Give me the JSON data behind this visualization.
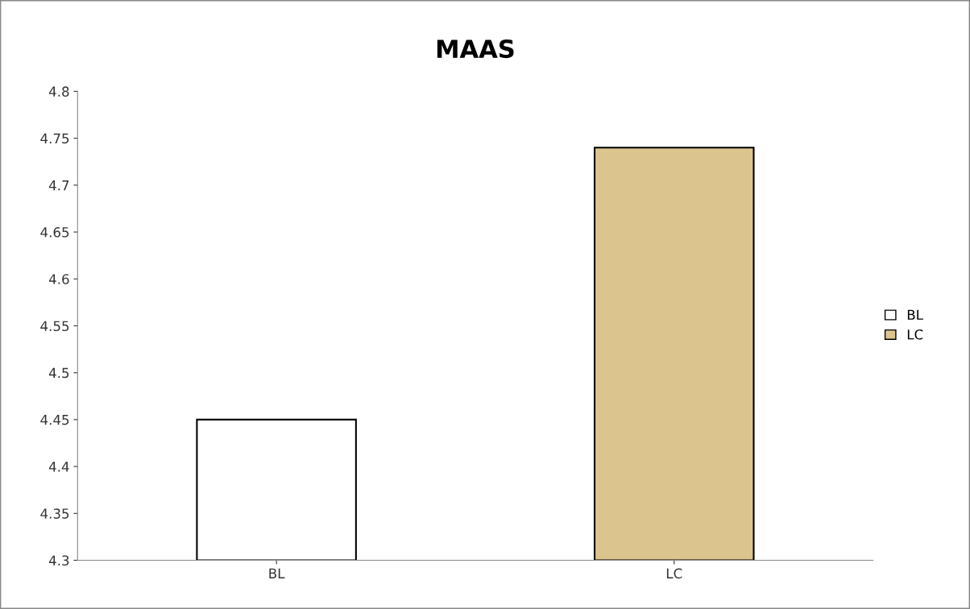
{
  "chart_data": {
    "type": "bar",
    "title": "MAAS",
    "categories": [
      "BL",
      "LC"
    ],
    "series": [
      {
        "name": "BL",
        "color": "#ffffff",
        "values": [
          4.45,
          null
        ]
      },
      {
        "name": "LC",
        "color": "#dcc48e",
        "values": [
          null,
          4.74
        ]
      }
    ],
    "ylim": [
      4.3,
      4.8
    ],
    "yticks": [
      4.3,
      4.35,
      4.4,
      4.45,
      4.5,
      4.55,
      4.6,
      4.65,
      4.7,
      4.75,
      4.8
    ],
    "grid": false,
    "legend": "right"
  }
}
